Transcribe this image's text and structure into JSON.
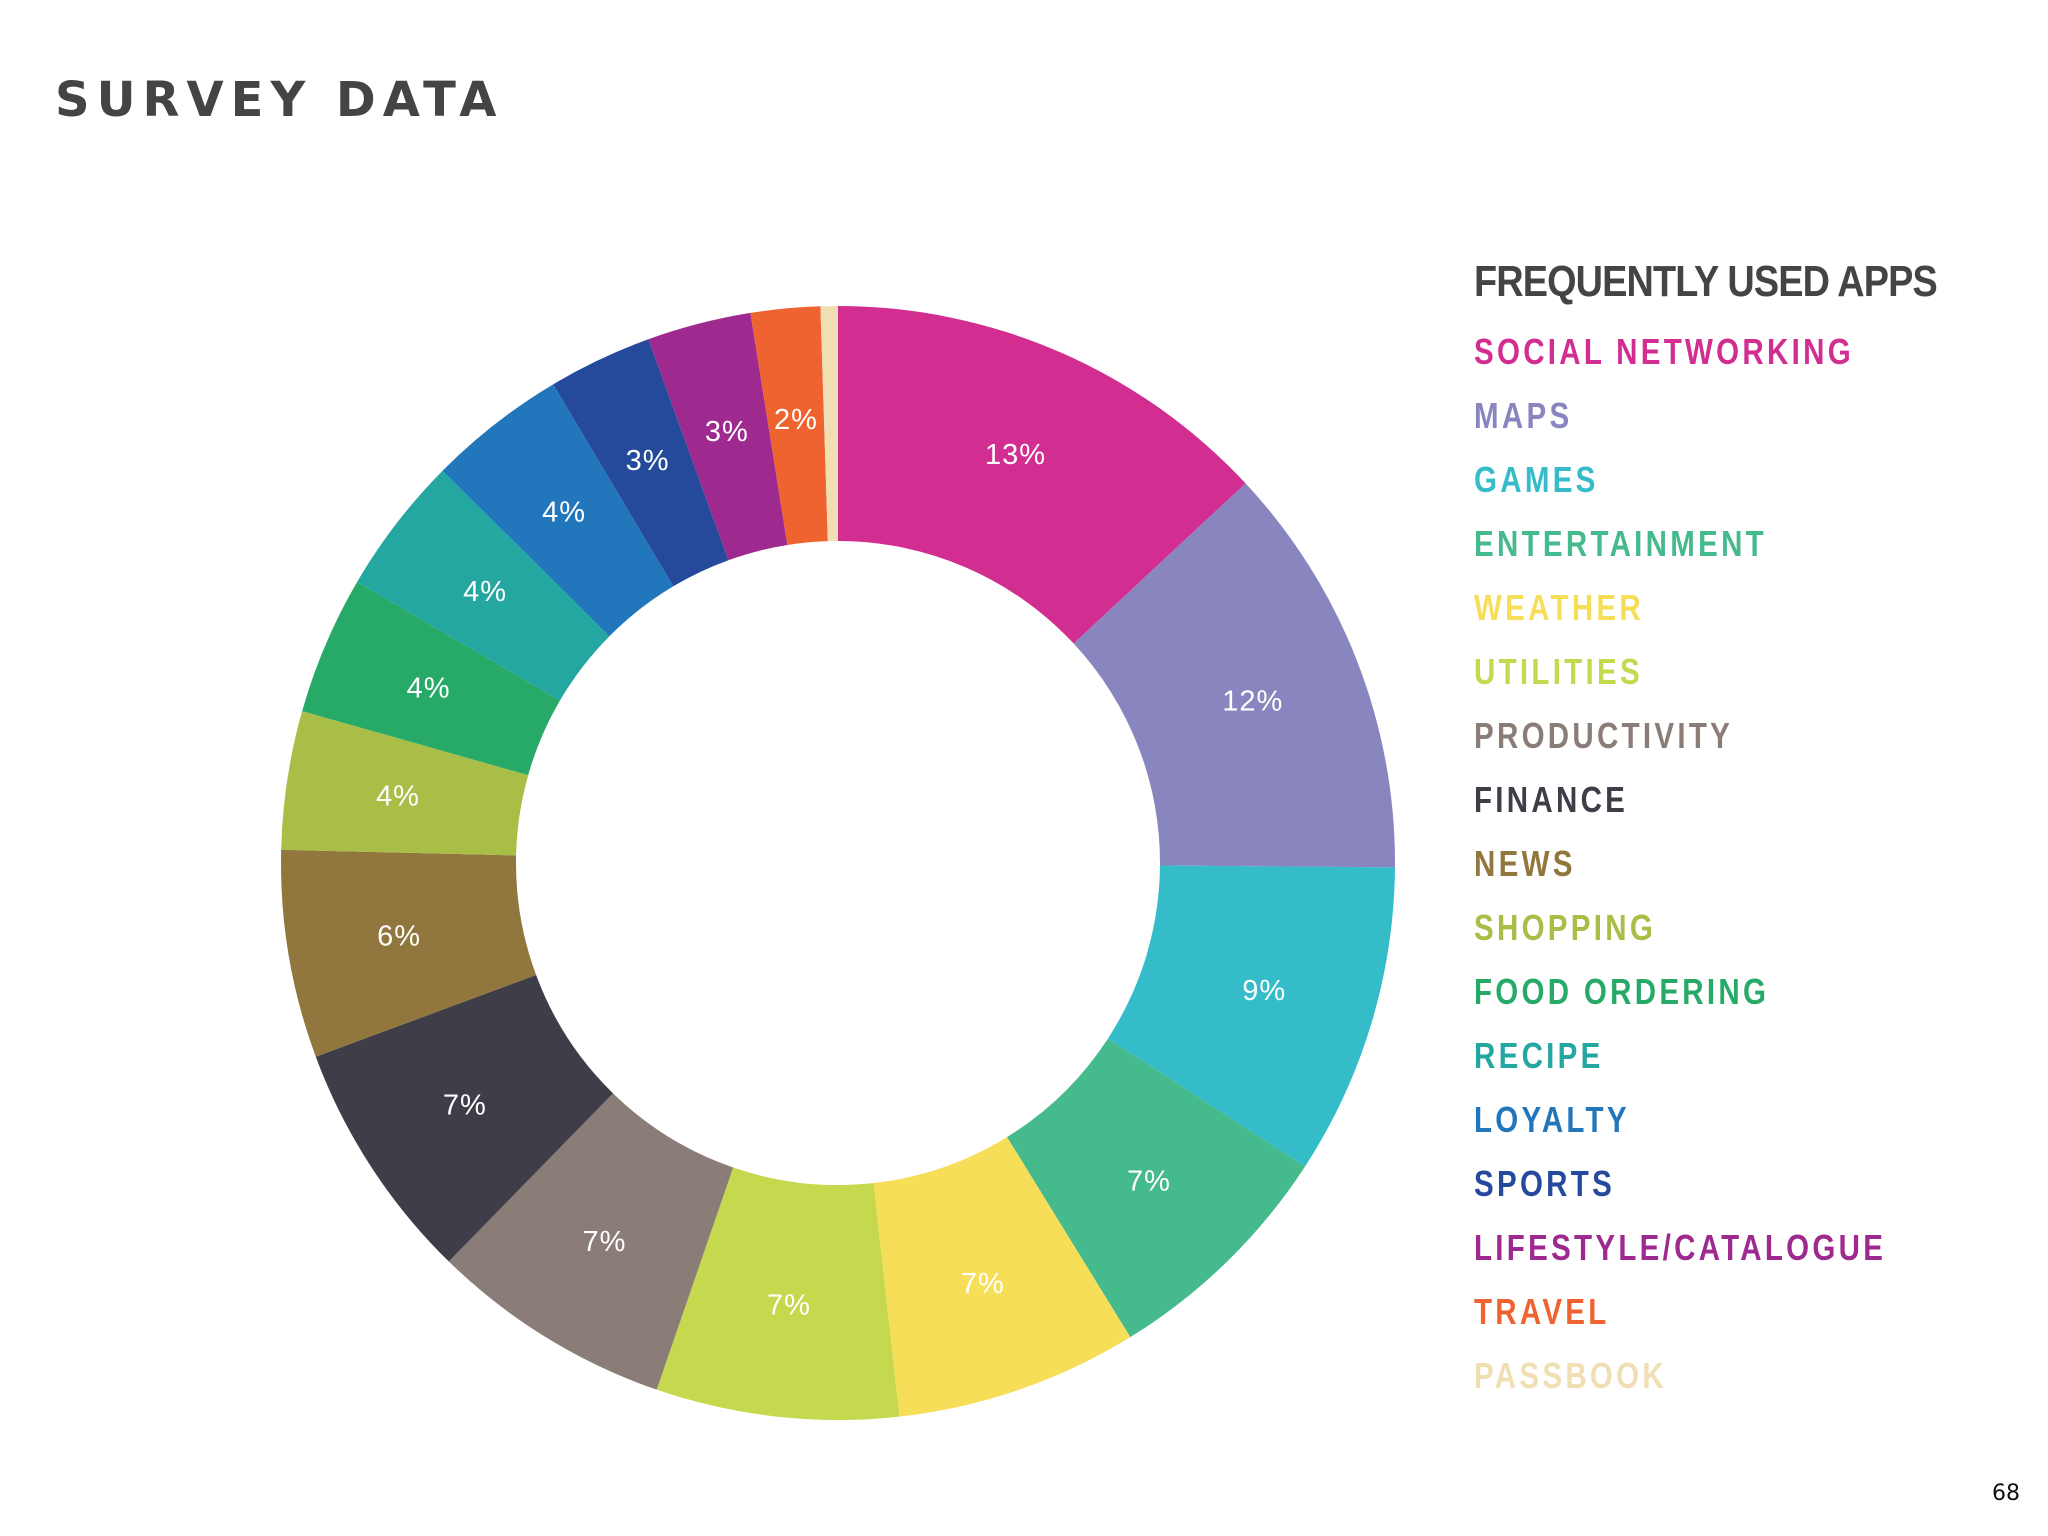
{
  "page": {
    "title": "SURVEY DATA",
    "page_number": "68"
  },
  "chart_data": {
    "type": "pie",
    "variant": "donut",
    "title": "FREQUENTLY USED APPS",
    "legend_position": "right",
    "categories": [
      "SOCIAL NETWORKING",
      "MAPS",
      "GAMES",
      "ENTERTAINMENT",
      "WEATHER",
      "UTILITIES",
      "PRODUCTIVITY",
      "FINANCE",
      "NEWS",
      "SHOPPING",
      "FOOD ORDERING",
      "RECIPE",
      "LOYALTY",
      "SPORTS",
      "LIFESTYLE/CATALOGUE",
      "TRAVEL",
      "PASSBOOK"
    ],
    "values": [
      13,
      12,
      9,
      7,
      7,
      7,
      7,
      7,
      6,
      4,
      4,
      4,
      4,
      3,
      3,
      2,
      0.5
    ],
    "labels": [
      "13%",
      "12%",
      "9%",
      "7%",
      "7%",
      "7%",
      "7%",
      "7%",
      "6%",
      "4%",
      "4%",
      "4%",
      "4%",
      "3%",
      "3%",
      "2%",
      ""
    ],
    "colors": [
      "#D22E92",
      "#8985BE",
      "#34BCC9",
      "#45BA8C",
      "#F7DE58",
      "#C6D84E",
      "#8A7D77",
      "#3E3D48",
      "#91773D",
      "#A9BE46",
      "#27AA68",
      "#25A7A1",
      "#2276BC",
      "#264A9B",
      "#9E2A8F",
      "#EF6330",
      "#F1DFB4"
    ]
  }
}
